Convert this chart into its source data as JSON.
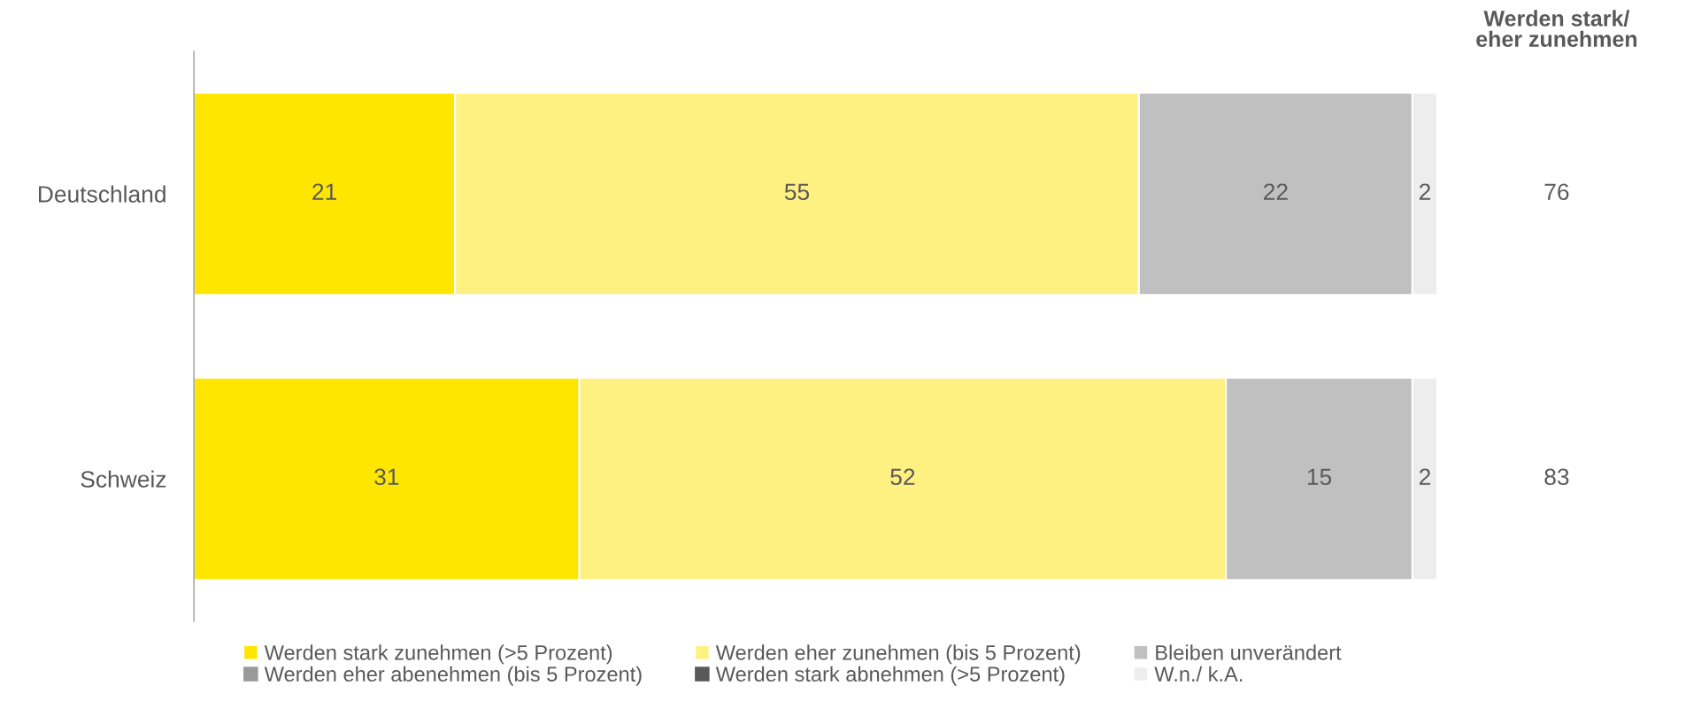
{
  "chart_data": {
    "type": "bar",
    "orientation": "horizontal",
    "stacked": true,
    "categories": [
      "Deutschland",
      "Schweiz"
    ],
    "series": [
      {
        "name": "Werden stark zunehmen (>5 Prozent)",
        "color": "#ffe600",
        "values": [
          21,
          31
        ]
      },
      {
        "name": "Werden eher zunehmen (bis 5 Prozent)",
        "color": "#fff082",
        "values": [
          55,
          52
        ]
      },
      {
        "name": "Bleiben unverändert",
        "color": "#c0c0c0",
        "values": [
          22,
          15
        ]
      },
      {
        "name": "Werden eher abenehmen (bis 5 Prozent)",
        "color": "#999999",
        "values": [
          null,
          null
        ]
      },
      {
        "name": "Werden stark abnehmen (>5 Prozent)",
        "color": "#595959",
        "values": [
          null,
          null
        ]
      },
      {
        "name": "W.n./ k.A.",
        "color": "#ededed",
        "values": [
          2,
          2
        ]
      }
    ],
    "data_labels": true,
    "annotations": [
      "Werden stark/\neher zunehmen",
      "76",
      "83"
    ],
    "xlim": [
      0,
      100
    ],
    "tick_labels": "y",
    "grid": false,
    "legend": "bottom"
  }
}
